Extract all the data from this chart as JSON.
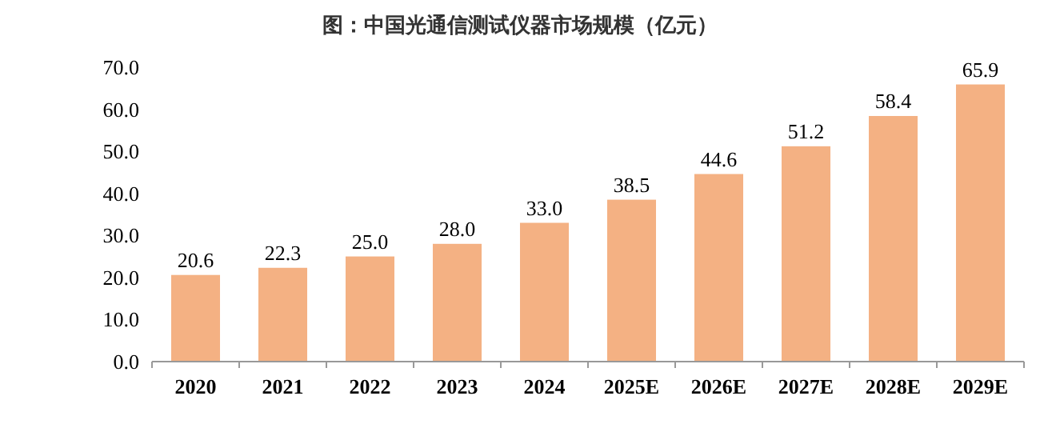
{
  "chart_data": {
    "type": "bar",
    "title": "图：中国光通信测试仪器市场规模（亿元）",
    "categories": [
      "2020",
      "2021",
      "2022",
      "2023",
      "2024",
      "2025E",
      "2026E",
      "2027E",
      "2028E",
      "2029E"
    ],
    "values": [
      20.6,
      22.3,
      25.0,
      28.0,
      33.0,
      38.5,
      44.6,
      51.2,
      58.4,
      65.9
    ],
    "value_labels": [
      "20.6",
      "22.3",
      "25.0",
      "28.0",
      "33.0",
      "38.5",
      "44.6",
      "51.2",
      "58.4",
      "65.9"
    ],
    "color": "#f4b183",
    "ylim": [
      0,
      70
    ],
    "yticks": [
      {
        "value": 0,
        "label": "0.0"
      },
      {
        "value": 10,
        "label": "10.0"
      },
      {
        "value": 20,
        "label": "20.0"
      },
      {
        "value": 30,
        "label": "30.0"
      },
      {
        "value": 40,
        "label": "40.0"
      },
      {
        "value": 50,
        "label": "50.0"
      },
      {
        "value": 60,
        "label": "60.0"
      },
      {
        "value": 70,
        "label": "70.0"
      }
    ],
    "grid": false
  }
}
